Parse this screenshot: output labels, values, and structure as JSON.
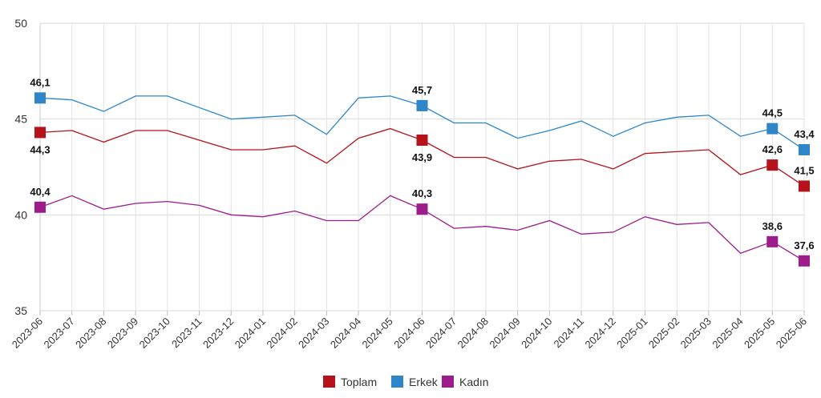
{
  "chart_data": {
    "type": "line",
    "title": "",
    "xlabel": "",
    "ylabel": "",
    "ylim": [
      35,
      50
    ],
    "yticks": [
      35,
      40,
      45,
      50
    ],
    "grid": true,
    "legend_position": "bottom-center",
    "categories": [
      "2023-06",
      "2023-07",
      "2023-08",
      "2023-09",
      "2023-10",
      "2023-11",
      "2023-12",
      "2024-01",
      "2024-02",
      "2024-03",
      "2024-04",
      "2024-05",
      "2024-06",
      "2024-07",
      "2024-08",
      "2024-09",
      "2024-10",
      "2024-11",
      "2024-12",
      "2025-01",
      "2025-02",
      "2025-03",
      "2025-04",
      "2025-05",
      "2025-06"
    ],
    "series": [
      {
        "name": "Toplam",
        "color": "#b5121b",
        "values": [
          44.3,
          44.4,
          43.8,
          44.4,
          44.4,
          43.9,
          43.4,
          43.4,
          43.6,
          42.7,
          44.0,
          44.5,
          43.9,
          43.0,
          43.0,
          42.4,
          42.8,
          42.9,
          42.4,
          43.2,
          43.3,
          43.4,
          42.1,
          42.6,
          41.5
        ],
        "labeled_points": [
          {
            "index": 0,
            "text": "44,3",
            "pos": "below"
          },
          {
            "index": 12,
            "text": "43,9",
            "pos": "below"
          },
          {
            "index": 23,
            "text": "42,6",
            "pos": "above"
          },
          {
            "index": 24,
            "text": "41,5",
            "pos": "above"
          }
        ]
      },
      {
        "name": "Erkek",
        "color": "#2e86c8",
        "values": [
          46.1,
          46.0,
          45.4,
          46.2,
          46.2,
          45.6,
          45.0,
          45.1,
          45.2,
          44.2,
          46.1,
          46.2,
          45.7,
          44.8,
          44.8,
          44.0,
          44.4,
          44.9,
          44.1,
          44.8,
          45.1,
          45.2,
          44.1,
          44.5,
          43.4
        ],
        "labeled_points": [
          {
            "index": 0,
            "text": "46,1",
            "pos": "above"
          },
          {
            "index": 12,
            "text": "45,7",
            "pos": "above"
          },
          {
            "index": 23,
            "text": "44,5",
            "pos": "above"
          },
          {
            "index": 24,
            "text": "43,4",
            "pos": "above"
          }
        ]
      },
      {
        "name": "Kadın",
        "color": "#9c1c8c",
        "values": [
          40.4,
          41.0,
          40.3,
          40.6,
          40.7,
          40.5,
          40.0,
          39.9,
          40.2,
          39.7,
          39.7,
          41.0,
          40.3,
          39.3,
          39.4,
          39.2,
          39.7,
          39.0,
          39.1,
          39.9,
          39.5,
          39.6,
          38.0,
          38.6,
          37.6
        ],
        "labeled_points": [
          {
            "index": 0,
            "text": "40,4",
            "pos": "above"
          },
          {
            "index": 12,
            "text": "40,3",
            "pos": "above"
          },
          {
            "index": 23,
            "text": "38,6",
            "pos": "above"
          },
          {
            "index": 24,
            "text": "37,6",
            "pos": "above"
          }
        ]
      }
    ]
  }
}
